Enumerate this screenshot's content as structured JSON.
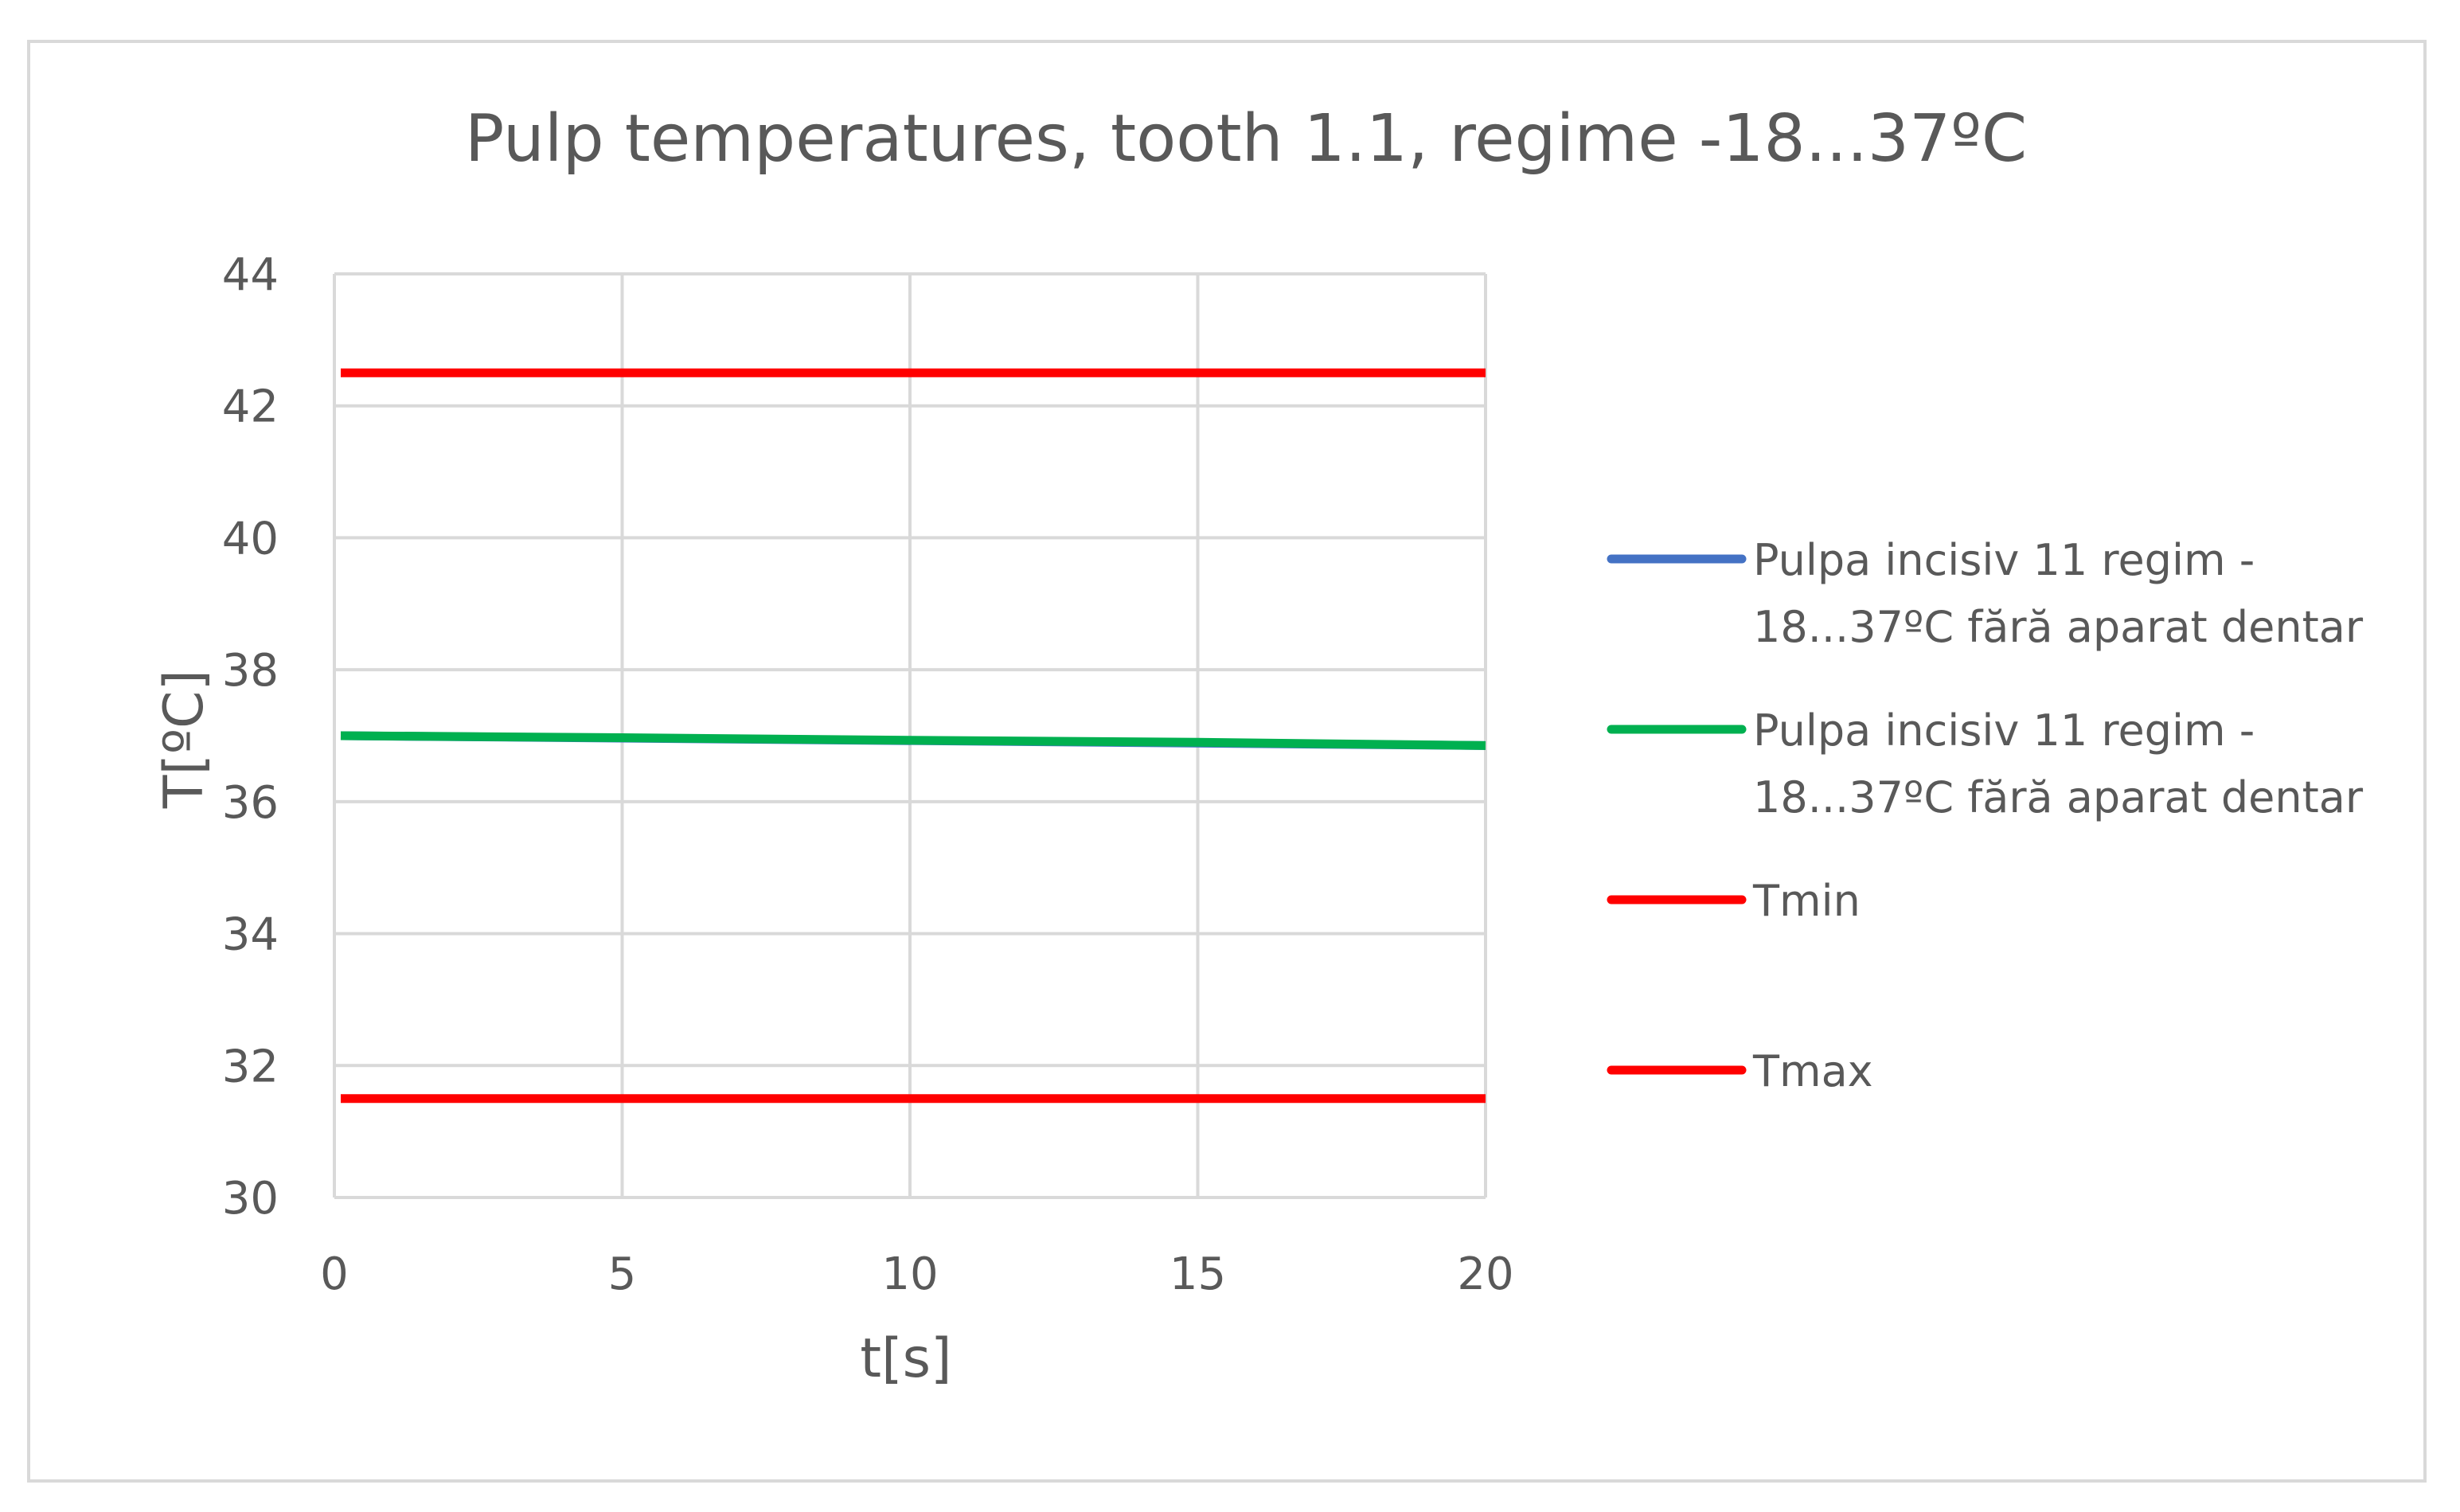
{
  "chart_data": {
    "type": "line",
    "title": "Pulp temperatures, tooth 1.1, regime -18...37ºC",
    "xlabel": "t[s]",
    "ylabel": "T[ºC]",
    "xlim": [
      0,
      20
    ],
    "ylim": [
      30,
      44
    ],
    "x_ticks": [
      0,
      5,
      10,
      15,
      20
    ],
    "y_ticks": [
      30,
      32,
      34,
      36,
      38,
      40,
      42,
      44
    ],
    "grid": true,
    "legend_position": "right",
    "series": [
      {
        "name": "Pulpa incisiv 11 regim -18...37ºC  fără aparat dentar",
        "legend_lines": [
          "Pulpa incisiv 11 regim -",
          "18...37ºC  fără aparat dentar"
        ],
        "color": "#4472c4",
        "x": [
          0,
          20
        ],
        "y": [
          37.0,
          36.85
        ]
      },
      {
        "name": "Pulpa incisiv 11 regim -18...37ºC  fără aparat dentar",
        "legend_lines": [
          "Pulpa incisiv 11 regim -",
          "18...37ºC  fără aparat dentar"
        ],
        "color": "#00b050",
        "x": [
          0,
          5,
          10,
          15,
          20
        ],
        "y": [
          37.0,
          36.97,
          36.93,
          36.9,
          36.85
        ]
      },
      {
        "name": "Tmin",
        "legend_lines": [
          "Tmin"
        ],
        "color": "#ff0000",
        "x": [
          0,
          20
        ],
        "y": [
          42.5,
          42.5
        ]
      },
      {
        "name": "Tmax",
        "legend_lines": [
          "Tmax"
        ],
        "color": "#ff0000",
        "x": [
          0,
          20
        ],
        "y": [
          31.5,
          31.5
        ]
      }
    ]
  }
}
